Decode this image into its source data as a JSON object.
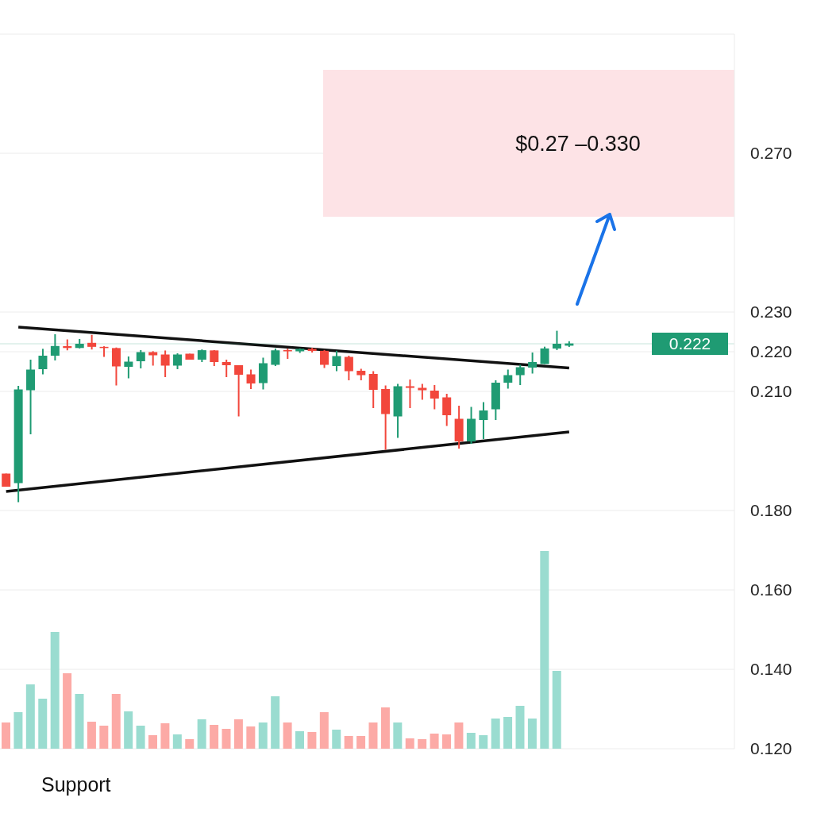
{
  "chart_data": {
    "type": "candlestick",
    "categories": [
      null,
      null,
      null,
      null,
      null,
      null,
      null,
      null,
      null,
      null,
      null,
      null,
      null,
      null,
      null,
      null,
      null,
      null,
      null,
      null,
      null,
      null,
      null,
      null,
      null,
      null,
      null,
      null,
      null,
      null,
      null,
      null,
      null,
      null,
      null,
      null,
      null,
      null,
      null,
      null,
      null,
      null,
      null,
      null,
      null,
      null,
      null,
      null,
      null,
      null,
      null,
      null,
      null,
      null,
      null,
      null,
      null,
      null,
      null,
      null
    ],
    "ohlc": [
      [
        0.1893,
        0.1893,
        0.186,
        0.186
      ],
      [
        0.1869,
        0.2114,
        0.1821,
        0.2105
      ],
      [
        0.2103,
        0.218,
        0.1992,
        0.2155
      ],
      [
        0.2156,
        0.22073,
        0.2143,
        0.219
      ],
      [
        0.219,
        0.2244,
        0.2178,
        0.22144
      ],
      [
        0.2214,
        0.2231,
        0.22035,
        0.22094
      ],
      [
        0.22094,
        0.2232,
        0.22083,
        0.222
      ],
      [
        0.22224,
        0.22424,
        0.22056,
        0.22123
      ],
      [
        0.22123,
        0.22138,
        0.2187,
        0.22092
      ],
      [
        0.22092,
        0.22106,
        0.2115,
        0.2163
      ],
      [
        0.2162,
        0.2188,
        0.2133,
        0.2175
      ],
      [
        0.2176,
        0.2204,
        0.2158,
        0.2199
      ],
      [
        0.2199,
        0.22013,
        0.2165,
        0.2191
      ],
      [
        0.2193,
        0.22031,
        0.2136,
        0.2165
      ],
      [
        0.2165,
        0.2196,
        0.2156,
        0.2193
      ],
      [
        0.2195,
        0.2195,
        0.218,
        0.218
      ],
      [
        0.218,
        0.22058,
        0.2174,
        0.22038
      ],
      [
        0.22033,
        0.22042,
        0.2164,
        0.2174
      ],
      [
        0.2174,
        0.218,
        0.2136,
        0.2166
      ],
      [
        0.2166,
        0.2166,
        0.2037,
        0.2142
      ],
      [
        0.2143,
        0.2155,
        0.2106,
        0.212
      ],
      [
        0.2121,
        0.2185,
        0.2105,
        0.2171
      ],
      [
        0.2167,
        0.22081,
        0.2164,
        0.22035
      ],
      [
        0.2204,
        0.22077,
        0.2182,
        0.2201
      ],
      [
        0.2201,
        0.22083,
        0.2197,
        0.22073
      ],
      [
        0.22073,
        0.221,
        0.2198,
        0.22019
      ],
      [
        0.22023,
        0.22044,
        0.2159,
        0.2167
      ],
      [
        0.2164,
        0.22023,
        0.2151,
        0.2189
      ],
      [
        0.2187,
        0.219,
        0.2128,
        0.2151
      ],
      [
        0.2152,
        0.2157,
        0.2128,
        0.2141
      ],
      [
        0.2144,
        0.2151,
        0.2058,
        0.2104
      ],
      [
        0.2106,
        0.2115,
        0.1953,
        0.2043
      ],
      [
        0.2037,
        0.2119,
        0.1983,
        0.2113
      ],
      [
        0.2113,
        0.213,
        0.2058,
        0.2109
      ],
      [
        0.2109,
        0.2119,
        0.2079,
        0.2103
      ],
      [
        0.2102,
        0.2116,
        0.2055,
        0.2082
      ],
      [
        0.2085,
        0.2094,
        0.2013,
        0.204
      ],
      [
        0.2031,
        0.2064,
        0.1956,
        0.1974
      ],
      [
        0.1974,
        0.2061,
        0.1968,
        0.2031
      ],
      [
        0.2028,
        0.2073,
        0.198,
        0.2052
      ],
      [
        0.2055,
        0.2128,
        0.2028,
        0.2122
      ],
      [
        0.2122,
        0.2155,
        0.2107,
        0.2141
      ],
      [
        0.2141,
        0.2167,
        0.2116,
        0.2161
      ],
      [
        0.216,
        0.2198,
        0.2145,
        0.2174
      ],
      [
        0.2169,
        0.22127,
        0.2169,
        0.22083
      ],
      [
        0.22081,
        0.22528,
        0.22042,
        0.222
      ],
      [
        0.22152,
        0.22264,
        0.22121,
        0.22208
      ],
      null,
      null,
      null,
      null,
      null,
      null,
      null,
      null,
      null,
      null,
      null,
      null,
      null
    ],
    "colors": [
      "#f2473c",
      "#1f9b73",
      "#1f9b73",
      "#1f9b73",
      "#1f9b73",
      "#f2473c",
      "#1f9b73",
      "#f2473c",
      "#f2473c",
      "#f2473c",
      "#1f9b73",
      "#1f9b73",
      "#f2473c",
      "#f2473c",
      "#1f9b73",
      "#f2473c",
      "#1f9b73",
      "#f2473c",
      "#f2473c",
      "#f2473c",
      "#f2473c",
      "#1f9b73",
      "#1f9b73",
      "#f2473c",
      "#1f9b73",
      "#f2473c",
      "#f2473c",
      "#1f9b73",
      "#f2473c",
      "#f2473c",
      "#f2473c",
      "#f2473c",
      "#1f9b73",
      "#f2473c",
      "#f2473c",
      "#f2473c",
      "#f2473c",
      "#f2473c",
      "#1f9b73",
      "#1f9b73",
      "#1f9b73",
      "#1f9b73",
      "#1f9b73",
      "#1f9b73",
      "#1f9b73",
      "#1f9b73",
      "#1f9b73",
      null,
      null,
      null,
      null,
      null,
      null,
      null,
      null,
      null,
      null,
      null,
      null,
      null
    ],
    "series": [
      {
        "type": "bar",
        "values": [
          0.1266,
          0.1292,
          0.1362,
          0.1326,
          0.1494,
          0.139,
          0.1338,
          0.1268,
          0.1258,
          0.1338,
          0.1294,
          0.1258,
          0.1234,
          0.1264,
          0.1236,
          0.1224,
          0.1274,
          0.126,
          0.125,
          0.1274,
          0.1256,
          0.1266,
          0.1332,
          0.1266,
          0.1244,
          0.1242,
          0.1292,
          0.1248,
          0.1232,
          0.1232,
          0.1266,
          0.1304,
          0.1266,
          0.1226,
          0.1224,
          0.1238,
          0.1236,
          0.1266,
          0.124,
          0.1234,
          0.1276,
          0.128,
          0.1308,
          0.1276,
          0.1698,
          0.1396,
          null,
          null,
          null,
          null,
          null,
          null,
          null,
          null,
          null,
          null,
          null,
          null,
          null,
          null
        ],
        "colors": [
          "#fcaaa6",
          "#9adcd0",
          "#9adcd0",
          "#9adcd0",
          "#9adcd0",
          "#fcaaa6",
          "#9adcd0",
          "#fcaaa6",
          "#fcaaa6",
          "#fcaaa6",
          "#9adcd0",
          "#9adcd0",
          "#fcaaa6",
          "#fcaaa6",
          "#9adcd0",
          "#fcaaa6",
          "#9adcd0",
          "#fcaaa6",
          "#fcaaa6",
          "#fcaaa6",
          "#fcaaa6",
          "#9adcd0",
          "#9adcd0",
          "#fcaaa6",
          "#9adcd0",
          "#fcaaa6",
          "#fcaaa6",
          "#9adcd0",
          "#fcaaa6",
          "#fcaaa6",
          "#fcaaa6",
          "#fcaaa6",
          "#9adcd0",
          "#fcaaa6",
          "#fcaaa6",
          "#fcaaa6",
          "#fcaaa6",
          "#fcaaa6",
          "#9adcd0",
          "#9adcd0",
          "#9adcd0",
          "#9adcd0",
          "#9adcd0",
          "#9adcd0",
          "#9adcd0",
          "#9adcd0",
          null,
          null,
          null,
          null,
          null,
          null,
          null,
          null,
          null,
          null,
          null,
          null,
          null,
          null
        ]
      },
      {
        "type": "line",
        "values": [
          null,
          0.2262,
          null,
          null,
          null,
          null,
          null,
          null,
          null,
          null,
          null,
          null,
          null,
          null,
          null,
          null,
          null,
          null,
          null,
          null,
          null,
          null,
          null,
          null,
          null,
          null,
          null,
          null,
          null,
          null,
          null,
          null,
          null,
          null,
          null,
          null,
          null,
          null,
          null,
          null,
          null,
          null,
          null,
          null,
          null,
          null,
          0.2159,
          null,
          null,
          null,
          null,
          null,
          null,
          null,
          null,
          null,
          null,
          null,
          null,
          null
        ],
        "color": "#111111"
      },
      {
        "type": "line",
        "values": [
          0.1848,
          null,
          null,
          null,
          null,
          null,
          null,
          null,
          null,
          null,
          null,
          null,
          null,
          null,
          null,
          null,
          null,
          null,
          null,
          null,
          null,
          null,
          null,
          null,
          null,
          null,
          null,
          null,
          null,
          null,
          null,
          null,
          null,
          null,
          null,
          null,
          null,
          null,
          null,
          null,
          null,
          null,
          null,
          null,
          null,
          null,
          0.1998,
          null,
          null,
          null,
          null,
          null,
          null,
          null,
          null,
          null,
          null,
          null,
          null,
          null
        ],
        "color": "#111111"
      }
    ],
    "ylim": [
      0.12,
      0.3
    ],
    "yticks": [
      {
        "value": 0.12,
        "label": "0.120"
      },
      {
        "value": 0.14,
        "label": "0.140"
      },
      {
        "value": 0.16,
        "label": "0.160"
      },
      {
        "value": 0.18,
        "label": "0.180"
      },
      {
        "value": 0.21,
        "label": "0.210"
      },
      {
        "value": 0.22,
        "label": "0.220"
      },
      {
        "value": 0.23,
        "label": "0.230"
      },
      {
        "value": 0.27,
        "label": "0.270"
      }
    ],
    "tick_labels": "y",
    "grid": "y",
    "bands": [
      {
        "axis": "y",
        "from": 0.254,
        "to": 0.291,
        "label": "$0.27 –0.330",
        "color": "#fde3e6"
      }
    ],
    "ref_lines": [
      {
        "axis": "y",
        "value": 0.222,
        "label": "0.222",
        "color": "#1f9b73"
      }
    ],
    "annotations": [
      "Support"
    ]
  }
}
